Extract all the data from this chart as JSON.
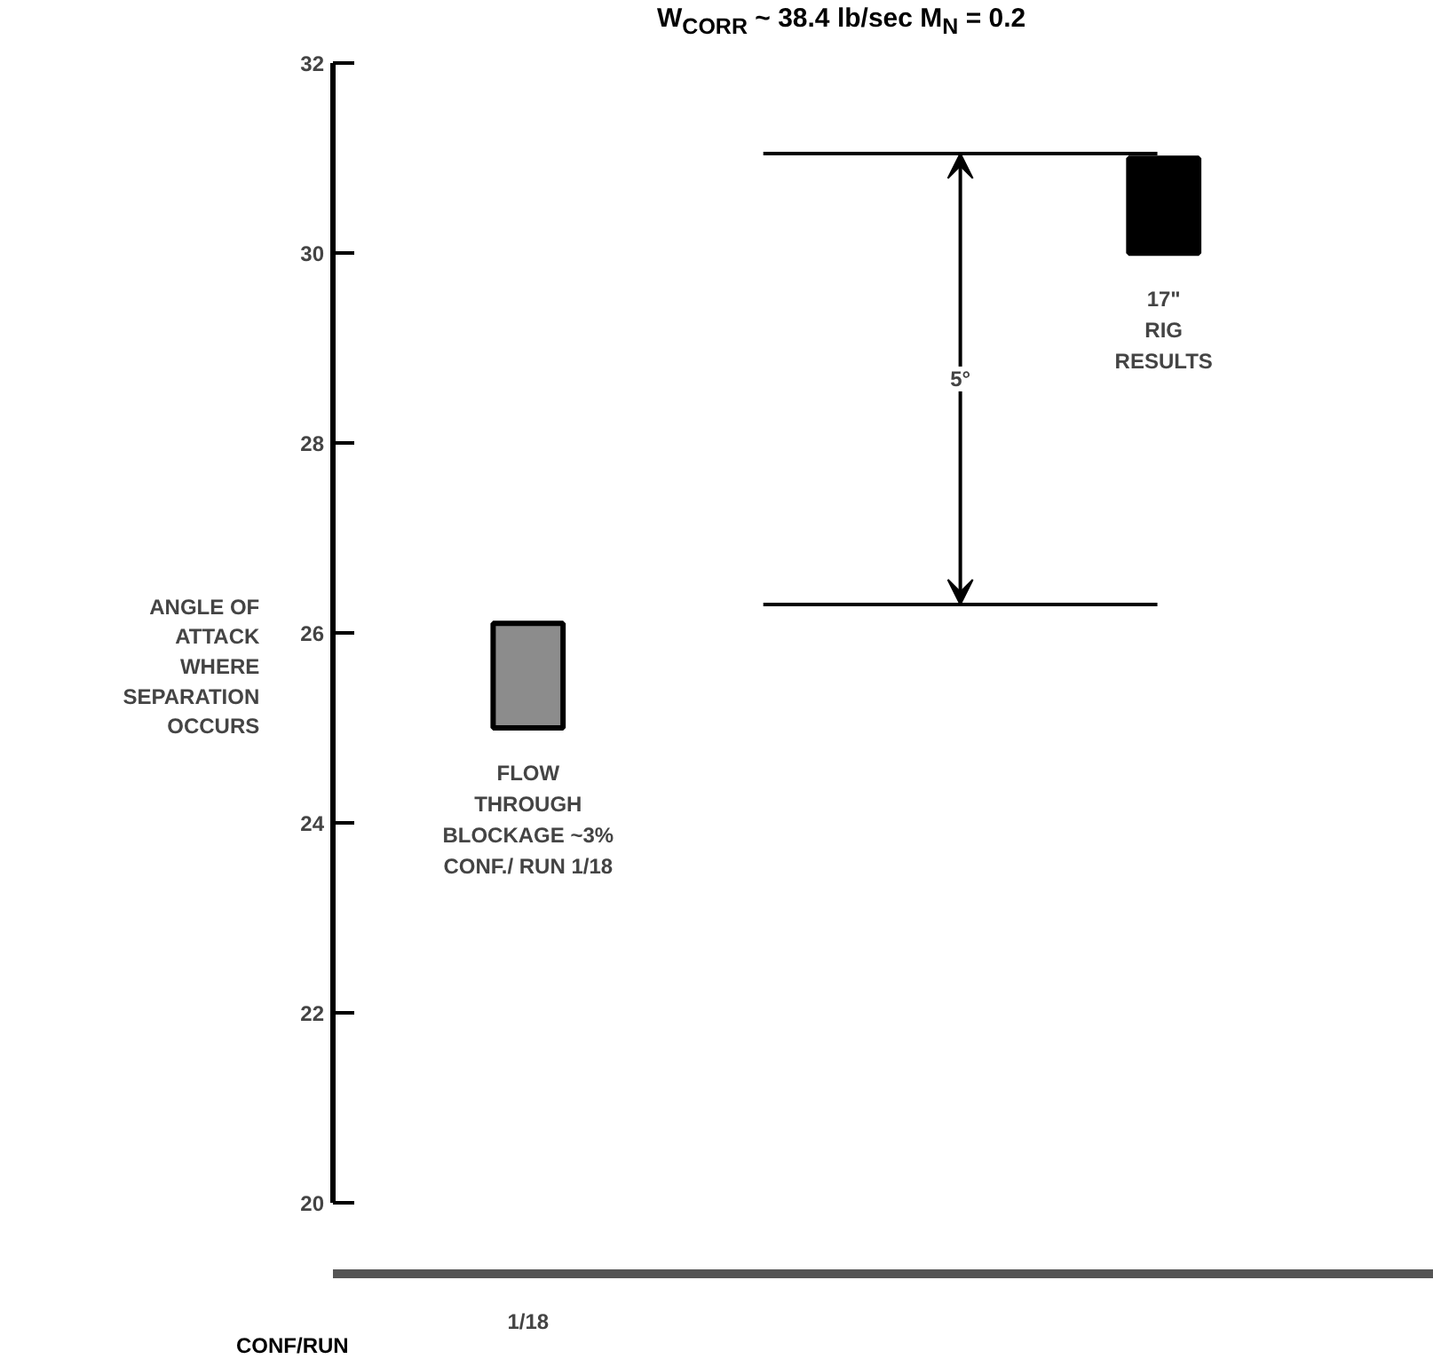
{
  "chart_data": {
    "type": "bar",
    "title": "W$_{CORR}$ ~ 38.4 lb/sec M$_{N}$ = 0.2",
    "ylabel": "ANGLE OF\nATTACK\nWHERE\nSEPARATION\nOCCURS",
    "xlabel": "CONF/RUN",
    "categories": [
      "1/18",
      null
    ],
    "base": [
      25.0,
      30.0
    ],
    "values": [
      1.1,
      1.0
    ],
    "colors": [
      "#8c8c8c",
      "#000000"
    ],
    "annotations": [
      "FLOW\nTHROUGH\nBLOCKAGE ~3%\nCONF./ RUN 1/18",
      "17\"\nRIG\nRESULTS",
      "5°"
    ],
    "ref_lines": [
      {
        "axis": "y",
        "value": 31.05
      },
      {
        "axis": "y",
        "value": 26.3
      }
    ],
    "ylim": [
      19.25,
      32.04
    ],
    "yticks": [
      20,
      22,
      24,
      26,
      28,
      30,
      32
    ],
    "grid": false
  }
}
